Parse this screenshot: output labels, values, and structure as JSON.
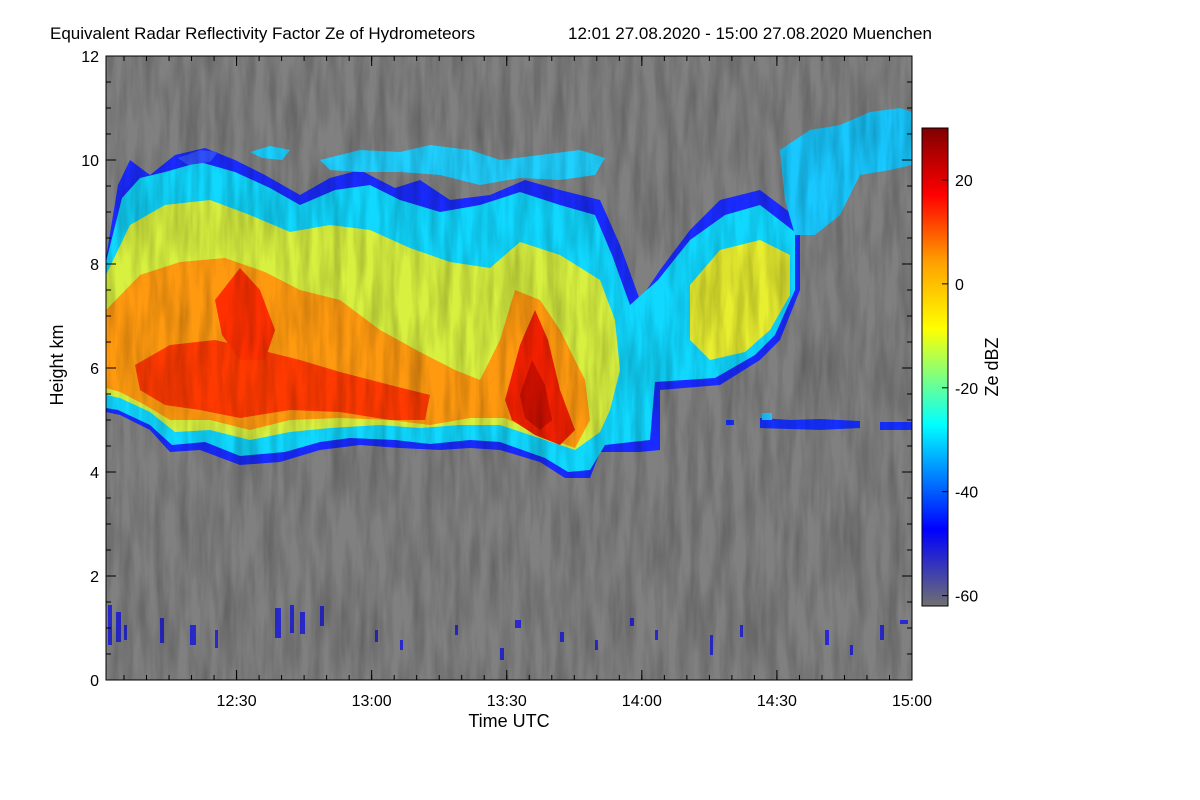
{
  "chart_data": {
    "type": "heatmap",
    "title": "Equivalent Radar Reflectivity Factor Ze of Hydrometeors",
    "subtitle": "12:01 27.08.2020 - 15:00 27.08.2020 Muenchen",
    "xlabel": "Time UTC",
    "ylabel": "Height km",
    "x_range_hours": [
      12.0167,
      15.0
    ],
    "x_ticks": [
      {
        "label": "12:30",
        "value": 12.5
      },
      {
        "label": "13:00",
        "value": 13.0
      },
      {
        "label": "13:30",
        "value": 13.5
      },
      {
        "label": "14:00",
        "value": 14.0
      },
      {
        "label": "14:30",
        "value": 14.5
      },
      {
        "label": "15:00",
        "value": 15.0
      }
    ],
    "ylim": [
      0,
      12
    ],
    "y_ticks": [
      0,
      2,
      4,
      6,
      8,
      10,
      12
    ],
    "colorbar": {
      "label": "Ze dBZ",
      "range": [
        -62,
        30
      ],
      "ticks": [
        "20",
        "0",
        "-20",
        "-40",
        "-60"
      ],
      "tick_values": [
        20,
        0,
        -20,
        -40,
        -60
      ],
      "colors": [
        "#707070",
        "#0000ff",
        "#00ffff",
        "#ffff00",
        "#ff0000",
        "#800000"
      ]
    },
    "background_color": "#808080",
    "features": [
      {
        "name": "main ice cloud",
        "time_start": 12.0167,
        "time_end": 14.0,
        "base_km": 4.3,
        "top_km": 10.2,
        "max_dbz": 15
      },
      {
        "name": "convective core",
        "time_start": 13.45,
        "time_end": 13.75,
        "base_km": 3.9,
        "top_km": 9.0,
        "max_dbz": 18
      },
      {
        "name": "upper cirrus",
        "time_start": 14.2,
        "time_end": 15.0,
        "base_km": 5.5,
        "top_km": 10.9,
        "max_dbz": 2
      },
      {
        "name": "melting layer remnant",
        "time_start": 14.4,
        "time_end": 15.0,
        "base_km": 4.8,
        "top_km": 4.95,
        "max_dbz": -40
      },
      {
        "name": "boundary layer clutter",
        "time_start": 12.0167,
        "time_end": 15.0,
        "base_km": 0.1,
        "top_km": 1.5,
        "max_dbz": -45
      }
    ]
  }
}
